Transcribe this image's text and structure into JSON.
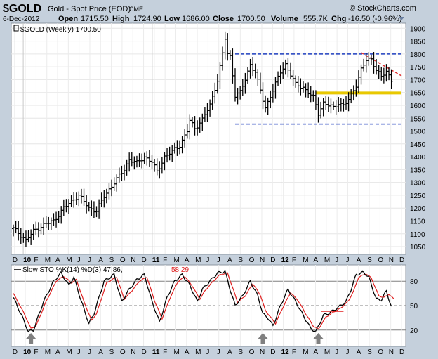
{
  "header": {
    "symbol": "$GOLD",
    "description": "Gold - Spot Price (EOD)",
    "exchange": "CME",
    "brand": "© StockCharts.com",
    "date": "6-Dec-2012",
    "open_label": "Open",
    "open": "1715.50",
    "high_label": "High",
    "high": "1724.90",
    "low_label": "Low",
    "low": "1686.00",
    "close_label": "Close",
    "close": "1700.50",
    "volume_label": "Volume",
    "volume": "555.7K",
    "chg_label": "Chg",
    "chg": "-16.50 (-0.96%)",
    "colors": {
      "background": "#c5d0dc",
      "panel": "#ffffff",
      "price": "#000000",
      "resistance": "#1f3fbf",
      "support_mid": "#e8c800",
      "trendline": "#e03030",
      "stoch_d": "#e02020",
      "arrow": "#808080"
    }
  },
  "chart_data": [
    {
      "type": "bar",
      "subtype": "ohlc-weekly",
      "legend": "$GOLD (Weekly) 1700.50",
      "y_ticks": [
        "1900",
        "1850",
        "1800",
        "1750",
        "1700",
        "1650",
        "1600",
        "1550",
        "1500",
        "1450",
        "1400",
        "1350",
        "1300",
        "1250",
        "1200",
        "1150",
        "1100",
        "1050"
      ],
      "ylim": [
        1020,
        1920
      ],
      "x_tick_labels": [
        "D",
        "10",
        "F",
        "M",
        "A",
        "M",
        "J",
        "J",
        "A",
        "S",
        "O",
        "N",
        "D",
        "11",
        "F",
        "M",
        "A",
        "M",
        "J",
        "J",
        "A",
        "S",
        "O",
        "N",
        "D",
        "12",
        "F",
        "M",
        "A",
        "M",
        "J",
        "J",
        "A",
        "S",
        "O",
        "N",
        "D"
      ],
      "grid": true,
      "anchors": [
        {
          "t": 0,
          "v": 1120
        },
        {
          "t": 3,
          "v": 1095
        },
        {
          "t": 5,
          "v": 1075
        },
        {
          "t": 8,
          "v": 1110
        },
        {
          "t": 12,
          "v": 1135
        },
        {
          "t": 16,
          "v": 1150
        },
        {
          "t": 20,
          "v": 1200
        },
        {
          "t": 24,
          "v": 1235
        },
        {
          "t": 26,
          "v": 1250
        },
        {
          "t": 30,
          "v": 1200
        },
        {
          "t": 33,
          "v": 1190
        },
        {
          "t": 36,
          "v": 1245
        },
        {
          "t": 40,
          "v": 1300
        },
        {
          "t": 44,
          "v": 1350
        },
        {
          "t": 46,
          "v": 1390
        },
        {
          "t": 49,
          "v": 1375
        },
        {
          "t": 52,
          "v": 1400
        },
        {
          "t": 55,
          "v": 1380
        },
        {
          "t": 57,
          "v": 1340
        },
        {
          "t": 60,
          "v": 1400
        },
        {
          "t": 63,
          "v": 1420
        },
        {
          "t": 66,
          "v": 1445
        },
        {
          "t": 69,
          "v": 1500
        },
        {
          "t": 70,
          "v": 1540
        },
        {
          "t": 72,
          "v": 1510
        },
        {
          "t": 75,
          "v": 1545
        },
        {
          "t": 78,
          "v": 1600
        },
        {
          "t": 81,
          "v": 1700
        },
        {
          "t": 83,
          "v": 1800
        },
        {
          "t": 84,
          "v": 1860
        },
        {
          "t": 85,
          "v": 1800
        },
        {
          "t": 86,
          "v": 1790
        },
        {
          "t": 87,
          "v": 1720
        },
        {
          "t": 88,
          "v": 1640
        },
        {
          "t": 90,
          "v": 1650
        },
        {
          "t": 92,
          "v": 1700
        },
        {
          "t": 94,
          "v": 1760
        },
        {
          "t": 96,
          "v": 1730
        },
        {
          "t": 99,
          "v": 1620
        },
        {
          "t": 100,
          "v": 1590
        },
        {
          "t": 103,
          "v": 1660
        },
        {
          "t": 106,
          "v": 1730
        },
        {
          "t": 108,
          "v": 1760
        },
        {
          "t": 110,
          "v": 1720
        },
        {
          "t": 112,
          "v": 1680
        },
        {
          "t": 115,
          "v": 1670
        },
        {
          "t": 117,
          "v": 1650
        },
        {
          "t": 119,
          "v": 1630
        },
        {
          "t": 121,
          "v": 1570
        },
        {
          "t": 123,
          "v": 1610
        },
        {
          "t": 125,
          "v": 1600
        },
        {
          "t": 127,
          "v": 1590
        },
        {
          "t": 129,
          "v": 1610
        },
        {
          "t": 131,
          "v": 1600
        },
        {
          "t": 133,
          "v": 1620
        },
        {
          "t": 136,
          "v": 1680
        },
        {
          "t": 138,
          "v": 1740
        },
        {
          "t": 140,
          "v": 1775
        },
        {
          "t": 142,
          "v": 1780
        },
        {
          "t": 144,
          "v": 1740
        },
        {
          "t": 146,
          "v": 1710
        },
        {
          "t": 148,
          "v": 1730
        },
        {
          "t": 150,
          "v": 1700
        }
      ],
      "levels": [
        {
          "kind": "resistance",
          "value": 1800,
          "from_t": 88,
          "to_t": 154,
          "style": "dashed"
        },
        {
          "kind": "support",
          "value": 1527,
          "from_t": 88,
          "to_t": 154,
          "style": "dashed"
        },
        {
          "kind": "midline",
          "value": 1648,
          "from_t": 120,
          "to_t": 154,
          "style": "solid"
        }
      ],
      "trendline": {
        "from": {
          "t": 138,
          "v": 1805
        },
        "to": {
          "t": 154,
          "v": 1715
        }
      }
    },
    {
      "type": "line",
      "legend_parts": [
        "Slow STO %K(14) %D(3) 47.86,",
        "58.29"
      ],
      "y_ticks": [
        "80",
        "50",
        "20"
      ],
      "ylim": [
        0,
        100
      ],
      "x_tick_labels": [
        "D",
        "10",
        "F",
        "M",
        "A",
        "M",
        "J",
        "J",
        "A",
        "S",
        "O",
        "N",
        "D",
        "11",
        "F",
        "M",
        "A",
        "M",
        "J",
        "J",
        "A",
        "S",
        "O",
        "N",
        "D",
        "12",
        "F",
        "M",
        "A",
        "M",
        "J",
        "J",
        "A",
        "S",
        "O",
        "N",
        "D"
      ],
      "series": [
        {
          "name": "%K",
          "anchors": [
            {
              "t": 0,
              "v": 60
            },
            {
              "t": 3,
              "v": 40
            },
            {
              "t": 6,
              "v": 18
            },
            {
              "t": 8,
              "v": 20
            },
            {
              "t": 12,
              "v": 55
            },
            {
              "t": 16,
              "v": 80
            },
            {
              "t": 19,
              "v": 90
            },
            {
              "t": 22,
              "v": 75
            },
            {
              "t": 24,
              "v": 85
            },
            {
              "t": 27,
              "v": 55
            },
            {
              "t": 30,
              "v": 28
            },
            {
              "t": 32,
              "v": 40
            },
            {
              "t": 36,
              "v": 80
            },
            {
              "t": 40,
              "v": 88
            },
            {
              "t": 43,
              "v": 55
            },
            {
              "t": 46,
              "v": 70
            },
            {
              "t": 49,
              "v": 82
            },
            {
              "t": 52,
              "v": 88
            },
            {
              "t": 55,
              "v": 55
            },
            {
              "t": 58,
              "v": 30
            },
            {
              "t": 61,
              "v": 60
            },
            {
              "t": 64,
              "v": 80
            },
            {
              "t": 67,
              "v": 88
            },
            {
              "t": 70,
              "v": 75
            },
            {
              "t": 73,
              "v": 55
            },
            {
              "t": 75,
              "v": 70
            },
            {
              "t": 78,
              "v": 80
            },
            {
              "t": 81,
              "v": 90
            },
            {
              "t": 84,
              "v": 92
            },
            {
              "t": 86,
              "v": 70
            },
            {
              "t": 88,
              "v": 50
            },
            {
              "t": 91,
              "v": 62
            },
            {
              "t": 94,
              "v": 80
            },
            {
              "t": 97,
              "v": 62
            },
            {
              "t": 99,
              "v": 40
            },
            {
              "t": 101,
              "v": 35
            },
            {
              "t": 103,
              "v": 25
            },
            {
              "t": 106,
              "v": 50
            },
            {
              "t": 109,
              "v": 70
            },
            {
              "t": 112,
              "v": 55
            },
            {
              "t": 115,
              "v": 38
            },
            {
              "t": 118,
              "v": 22
            },
            {
              "t": 120,
              "v": 18
            },
            {
              "t": 123,
              "v": 38
            },
            {
              "t": 126,
              "v": 42
            },
            {
              "t": 129,
              "v": 48
            },
            {
              "t": 132,
              "v": 55
            },
            {
              "t": 134,
              "v": 70
            },
            {
              "t": 136,
              "v": 88
            },
            {
              "t": 139,
              "v": 91
            },
            {
              "t": 141,
              "v": 85
            },
            {
              "t": 144,
              "v": 58
            },
            {
              "t": 146,
              "v": 57
            },
            {
              "t": 148,
              "v": 68
            },
            {
              "t": 150,
              "v": 48
            }
          ]
        },
        {
          "name": "%D",
          "anchors": [
            {
              "t": 0,
              "v": 65
            },
            {
              "t": 4,
              "v": 42
            },
            {
              "t": 7,
              "v": 22
            },
            {
              "t": 9,
              "v": 25
            },
            {
              "t": 13,
              "v": 55
            },
            {
              "t": 17,
              "v": 80
            },
            {
              "t": 20,
              "v": 86
            },
            {
              "t": 23,
              "v": 78
            },
            {
              "t": 25,
              "v": 82
            },
            {
              "t": 28,
              "v": 55
            },
            {
              "t": 31,
              "v": 32
            },
            {
              "t": 33,
              "v": 40
            },
            {
              "t": 37,
              "v": 78
            },
            {
              "t": 41,
              "v": 85
            },
            {
              "t": 44,
              "v": 58
            },
            {
              "t": 47,
              "v": 68
            },
            {
              "t": 50,
              "v": 80
            },
            {
              "t": 53,
              "v": 85
            },
            {
              "t": 56,
              "v": 56
            },
            {
              "t": 59,
              "v": 34
            },
            {
              "t": 62,
              "v": 58
            },
            {
              "t": 65,
              "v": 78
            },
            {
              "t": 68,
              "v": 86
            },
            {
              "t": 71,
              "v": 74
            },
            {
              "t": 74,
              "v": 58
            },
            {
              "t": 76,
              "v": 68
            },
            {
              "t": 79,
              "v": 79
            },
            {
              "t": 82,
              "v": 88
            },
            {
              "t": 85,
              "v": 90
            },
            {
              "t": 87,
              "v": 72
            },
            {
              "t": 89,
              "v": 54
            },
            {
              "t": 92,
              "v": 62
            },
            {
              "t": 95,
              "v": 77
            },
            {
              "t": 98,
              "v": 63
            },
            {
              "t": 100,
              "v": 44
            },
            {
              "t": 102,
              "v": 36
            },
            {
              "t": 104,
              "v": 28
            },
            {
              "t": 107,
              "v": 48
            },
            {
              "t": 110,
              "v": 66
            },
            {
              "t": 113,
              "v": 56
            },
            {
              "t": 116,
              "v": 40
            },
            {
              "t": 119,
              "v": 25
            },
            {
              "t": 121,
              "v": 21
            },
            {
              "t": 124,
              "v": 36
            },
            {
              "t": 127,
              "v": 42
            },
            {
              "t": 130,
              "v": 47
            },
            {
              "t": 133,
              "v": 56
            },
            {
              "t": 135,
              "v": 68
            },
            {
              "t": 137,
              "v": 85
            },
            {
              "t": 140,
              "v": 89
            },
            {
              "t": 142,
              "v": 84
            },
            {
              "t": 145,
              "v": 62
            },
            {
              "t": 147,
              "v": 60
            },
            {
              "t": 149,
              "v": 64
            },
            {
              "t": 151,
              "v": 58
            }
          ]
        }
      ],
      "signal_arrows_at_t": [
        7,
        99,
        121
      ],
      "flat_line": {
        "value": 43,
        "from_t": 122,
        "to_t": 131
      }
    }
  ]
}
